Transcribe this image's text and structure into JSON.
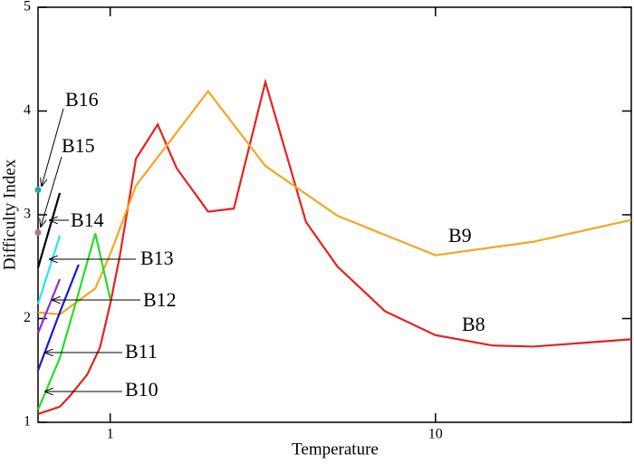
{
  "chart_data": {
    "type": "line",
    "x_label": "Temperature",
    "y_label": "Difficulty Index",
    "xscale": "log",
    "xlim": [
      0.6,
      40
    ],
    "ylim": [
      1,
      5
    ],
    "xticks": [
      1,
      10
    ],
    "yticks": [
      1,
      2,
      3,
      4,
      5
    ],
    "series": [
      {
        "name": "B8",
        "color": "#e8201e",
        "x": [
          0.6,
          0.7,
          0.75,
          0.85,
          0.93,
          1,
          1.07,
          1.2,
          1.4,
          1.6,
          2,
          2.4,
          3,
          4,
          5,
          7,
          10,
          15,
          20,
          40
        ],
        "values": [
          1.08,
          1.15,
          1.25,
          1.46,
          1.72,
          2.14,
          2.6,
          3.54,
          3.87,
          3.45,
          3.03,
          3.06,
          4.28,
          2.93,
          2.5,
          2.07,
          1.84,
          1.74,
          1.73,
          1.8
        ]
      },
      {
        "name": "B9",
        "color": "#f5a623",
        "x": [
          0.6,
          0.7,
          0.9,
          1,
          1.2,
          2,
          3,
          5,
          10,
          20,
          40
        ],
        "values": [
          2.06,
          2.04,
          2.29,
          2.62,
          3.28,
          4.19,
          3.47,
          2.99,
          2.61,
          2.74,
          2.95
        ]
      },
      {
        "name": "B10",
        "color": "#22e022",
        "x": [
          0.6,
          0.7,
          0.79,
          0.9,
          1
        ],
        "values": [
          1.12,
          1.62,
          2.19,
          2.82,
          2.19
        ]
      },
      {
        "name": "B11",
        "color": "#1a1ad0",
        "x": [
          0.6,
          0.7,
          0.8
        ],
        "values": [
          1.5,
          2.06,
          2.52
        ]
      },
      {
        "name": "B12",
        "color": "#8a2be2",
        "x": [
          0.6,
          0.7
        ],
        "values": [
          1.86,
          2.38
        ]
      },
      {
        "name": "B13",
        "color": "#22e8f0",
        "x": [
          0.6,
          0.7
        ],
        "values": [
          2.14,
          2.8
        ]
      },
      {
        "name": "B14",
        "color": "#000000",
        "x": [
          0.6,
          0.7
        ],
        "values": [
          2.49,
          3.21
        ]
      },
      {
        "name": "B15",
        "color": "#b07a70",
        "x": [
          0.6
        ],
        "values": [
          2.83
        ]
      },
      {
        "name": "B16",
        "color": "#20a8a8",
        "x": [
          0.6
        ],
        "values": [
          3.24
        ]
      }
    ]
  }
}
